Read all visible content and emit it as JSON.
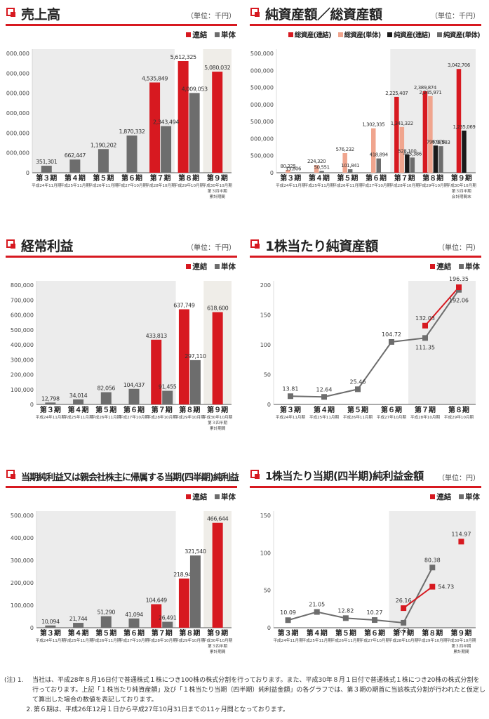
{
  "colors": {
    "consolidated": "#d71920",
    "single": "#6d6d6d",
    "total_single": "#f0a58e",
    "net_consolidated": "#1a1a1a",
    "shade": "#efefef",
    "accent": "#d71920"
  },
  "chart_data": [
    {
      "id": "sales",
      "type": "bar",
      "title": "売上高",
      "unit": "（単位：千円）",
      "legend": [
        "連結",
        "単体"
      ],
      "categories": [
        "第３期",
        "第４期",
        "第５期",
        "第６期",
        "第７期",
        "第８期",
        "第９期"
      ],
      "subtitles": [
        [
          "平成24年11月期"
        ],
        [
          "平成25年11月期"
        ],
        [
          "平成26年11月期"
        ],
        [
          "平成27年10月期"
        ],
        [
          "平成28年10月期"
        ],
        [
          "平成29年10月期"
        ],
        [
          "平成30年10月期",
          "第３四半期",
          "累計期間"
        ]
      ],
      "ymin": 0,
      "ymax": 6000000,
      "ystep": 1000000,
      "yticks": [
        "0",
        "1,000,000",
        "2,000,000",
        "3,000,000",
        "4,000,000",
        "5,000,000",
        "6,000,000"
      ],
      "shade_from": 0,
      "shade_to": 4,
      "series": [
        {
          "name": "連結",
          "color": "#d71920",
          "values": [
            null,
            null,
            null,
            null,
            4535849,
            5612325,
            5080032
          ],
          "labels": [
            "",
            "",
            "",
            "",
            "4,535,849",
            "5,612,325",
            "5,080,032"
          ]
        },
        {
          "name": "単体",
          "color": "#6d6d6d",
          "values": [
            351301,
            662447,
            1190202,
            1870332,
            2343494,
            4009053,
            null
          ],
          "labels": [
            "351,301",
            "662,447",
            "1,190,202",
            "1,870,332",
            "2,343,494",
            "4,009,053",
            ""
          ]
        }
      ]
    },
    {
      "id": "netassets",
      "type": "bar",
      "title": "純資産額／総資産額",
      "unit": "（単位：千円）",
      "legend": [
        "総資産(連結)",
        "総資産(単体)",
        "純資産(連結)",
        "純資産(単体)"
      ],
      "categories": [
        "第３期",
        "第４期",
        "第５期",
        "第６期",
        "第７期",
        "第８期",
        "第９期"
      ],
      "subtitles": [
        [
          "平成24年11月期"
        ],
        [
          "平成25年11月期"
        ],
        [
          "平成26年11月期"
        ],
        [
          "平成27年10月期"
        ],
        [
          "平成28年10月期"
        ],
        [
          "平成29年10月期"
        ],
        [
          "平成30年10月期",
          "第３四半期",
          "会計期間末"
        ]
      ],
      "ymin": 0,
      "ymax": 3500000,
      "ystep": 500000,
      "yticks": [
        "0",
        "500,000",
        "1,000,000",
        "1,500,000",
        "2,000,000",
        "2,500,000",
        "3,000,000",
        "3,500,000"
      ],
      "shade_from": 4,
      "shade_to": 6,
      "series": [
        {
          "name": "総資産(連結)",
          "color": "#d71920",
          "values": [
            null,
            null,
            null,
            null,
            2225407,
            2389874,
            3042706
          ],
          "labels": [
            "",
            "",
            "",
            "",
            "2,225,407",
            "2,389,874",
            "3,042,706"
          ]
        },
        {
          "name": "総資産(単体)",
          "color": "#f0a58e",
          "values": [
            80225,
            224320,
            576232,
            1302335,
            1341322,
            2245971,
            null
          ],
          "labels": [
            "80,225",
            "224,320",
            "576,232",
            "1,302,335",
            "1,341,322",
            "2,245,971",
            ""
          ]
        },
        {
          "name": "純資産(連結)",
          "color": "#1a1a1a",
          "values": [
            null,
            null,
            null,
            null,
            528100,
            796978,
            1235069
          ],
          "labels": [
            "",
            "",
            "",
            "",
            "528,100",
            "796,978",
            "1,235,069"
          ]
        },
        {
          "name": "純資産(単体)",
          "color": "#6d6d6d",
          "values": [
            13806,
            50551,
            101841,
            418894,
            445386,
            779583,
            null
          ],
          "labels": [
            "13,806",
            "50,551",
            "101,841",
            "418,894",
            "445,386",
            "779,583",
            ""
          ]
        }
      ]
    },
    {
      "id": "ordinary",
      "type": "bar",
      "title": "経常利益",
      "unit": "（単位：千円）",
      "legend": [
        "連結",
        "単体"
      ],
      "categories": [
        "第３期",
        "第４期",
        "第５期",
        "第６期",
        "第７期",
        "第８期",
        "第９期"
      ],
      "subtitles": [
        [
          "平成24年11月期"
        ],
        [
          "平成25年11月期"
        ],
        [
          "平成26年11月期"
        ],
        [
          "平成27年10月期"
        ],
        [
          "平成28年10月期"
        ],
        [
          "平成29年10月期"
        ],
        [
          "平成30年10月期",
          "第３四半期",
          "累計期間"
        ]
      ],
      "ymin": 0,
      "ymax": 800000,
      "ystep": 100000,
      "yticks": [
        "0",
        "100,000",
        "200,000",
        "300,000",
        "400,000",
        "500,000",
        "600,000",
        "700,000",
        "800,000"
      ],
      "shade_from": 0,
      "shade_to": 4,
      "series": [
        {
          "name": "連結",
          "color": "#d71920",
          "values": [
            null,
            null,
            null,
            null,
            433813,
            637749,
            618600
          ],
          "labels": [
            "",
            "",
            "",
            "",
            "433,813",
            "637,749",
            "618,600"
          ]
        },
        {
          "name": "単体",
          "color": "#6d6d6d",
          "values": [
            12798,
            34014,
            82056,
            104437,
            91455,
            297110,
            null
          ],
          "labels": [
            "12,798",
            "34,014",
            "82,056",
            "104,437",
            "91,455",
            "297,110",
            ""
          ]
        }
      ]
    },
    {
      "id": "bps",
      "type": "line",
      "title": "1株当たり純資産額",
      "unit": "（単位：円）",
      "legend": [
        "連結",
        "単体"
      ],
      "categories": [
        "第３期",
        "第４期",
        "第５期",
        "第６期",
        "第７期",
        "第８期"
      ],
      "subtitles": [
        [
          "平成24年11月期"
        ],
        [
          "平成25年11月期"
        ],
        [
          "平成26年11月期"
        ],
        [
          "平成27年10月期"
        ],
        [
          "平成28年10月期"
        ],
        [
          "平成29年10月期"
        ]
      ],
      "ymin": 0,
      "ymax": 200,
      "ystep": 50,
      "yticks": [
        "0",
        "50",
        "100",
        "150",
        "200"
      ],
      "shade_from": 4,
      "shade_to": 5,
      "series": [
        {
          "name": "連結",
          "color": "#d71920",
          "values": [
            null,
            null,
            null,
            null,
            132.03,
            196.35
          ],
          "labels": [
            "",
            "",
            "",
            "",
            "132.03",
            "196.35"
          ]
        },
        {
          "name": "単体",
          "color": "#6d6d6d",
          "values": [
            13.81,
            12.64,
            25.46,
            104.72,
            111.35,
            192.06
          ],
          "labels": [
            "13.81",
            "12.64",
            "25.46",
            "104.72",
            "111.35",
            "192.06"
          ]
        }
      ]
    },
    {
      "id": "netincome",
      "type": "bar",
      "title": "当期純利益又は親会社株主に帰属する当期(四半期)純利益",
      "unit": "（単位：千円）",
      "legend": [
        "連結",
        "単体"
      ],
      "categories": [
        "第３期",
        "第４期",
        "第５期",
        "第６期",
        "第７期",
        "第８期",
        "第９期"
      ],
      "subtitles": [
        [
          "平成24年11月期"
        ],
        [
          "平成25年11月期"
        ],
        [
          "平成26年11月期"
        ],
        [
          "平成27年10月期"
        ],
        [
          "平成28年10月期"
        ],
        [
          "平成29年10月期"
        ],
        [
          "平成30年10月期",
          "第３四半期",
          "累計期間"
        ]
      ],
      "ymin": 0,
      "ymax": 500000,
      "ystep": 100000,
      "yticks": [
        "0",
        "100,000",
        "200,000",
        "300,000",
        "400,000",
        "500,000"
      ],
      "shade_from": 0,
      "shade_to": 4,
      "series": [
        {
          "name": "連結",
          "color": "#d71920",
          "values": [
            null,
            null,
            null,
            null,
            104649,
            218947,
            466644
          ],
          "labels": [
            "",
            "",
            "",
            "",
            "104,649",
            "218,947",
            "466,644"
          ]
        },
        {
          "name": "単体",
          "color": "#6d6d6d",
          "values": [
            10094,
            21744,
            51290,
            41094,
            26491,
            321540,
            null
          ],
          "labels": [
            "10,094",
            "21,744",
            "51,290",
            "41,094",
            "26,491",
            "321,540",
            ""
          ]
        }
      ]
    },
    {
      "id": "eps",
      "type": "line",
      "title": "1株当たり当期(四半期)純利益金額",
      "unit": "（単位：円）",
      "legend": [
        "連結",
        "単体"
      ],
      "categories": [
        "第３期",
        "第４期",
        "第５期",
        "第６期",
        "第７期",
        "第８期",
        "第９期"
      ],
      "subtitles": [
        [
          "平成24年11月期"
        ],
        [
          "平成25年11月期"
        ],
        [
          "平成26年11月期"
        ],
        [
          "平成27年10月期"
        ],
        [
          "平成28年10月期"
        ],
        [
          "平成29年10月期"
        ],
        [
          "平成30年10月期",
          "第３四半期",
          "累計期間"
        ]
      ],
      "ymin": 0,
      "ymax": 150,
      "ystep": 50,
      "yticks": [
        "0",
        "50",
        "100",
        "150"
      ],
      "shade_from": 4,
      "shade_to": 6,
      "series": [
        {
          "name": "連結",
          "color": "#d71920",
          "values": [
            null,
            null,
            null,
            null,
            26.16,
            54.73,
            114.97
          ],
          "labels": [
            "",
            "",
            "",
            "",
            "26.16",
            "54.73",
            "114.97"
          ],
          "connect_until": 5
        },
        {
          "name": "単体",
          "color": "#6d6d6d",
          "values": [
            10.09,
            21.05,
            12.82,
            10.27,
            6.62,
            80.38,
            null
          ],
          "labels": [
            "10.09",
            "21.05",
            "12.82",
            "10.27",
            "6.62",
            "80.38",
            ""
          ]
        }
      ]
    }
  ],
  "notes": [
    {
      "prefix": "(注) 1.",
      "text": "当社は、平成28年８月16日付で普通株式１株につき100株の株式分割を行っております。また、平成30年８月１日付で普通株式１株につき20株の株式分割を行っております。上記「１株当たり純資産額」及び「１株当たり当期（四半期）純利益金額」の各グラフでは、第３期の期首に当該株式分割が行われたと仮定して算出した場合の数値を表記しております。"
    },
    {
      "prefix": "2.",
      "text": "第６期は、平成26年12月１日から平成27年10月31日までの11ヶ月間となっております。"
    }
  ]
}
